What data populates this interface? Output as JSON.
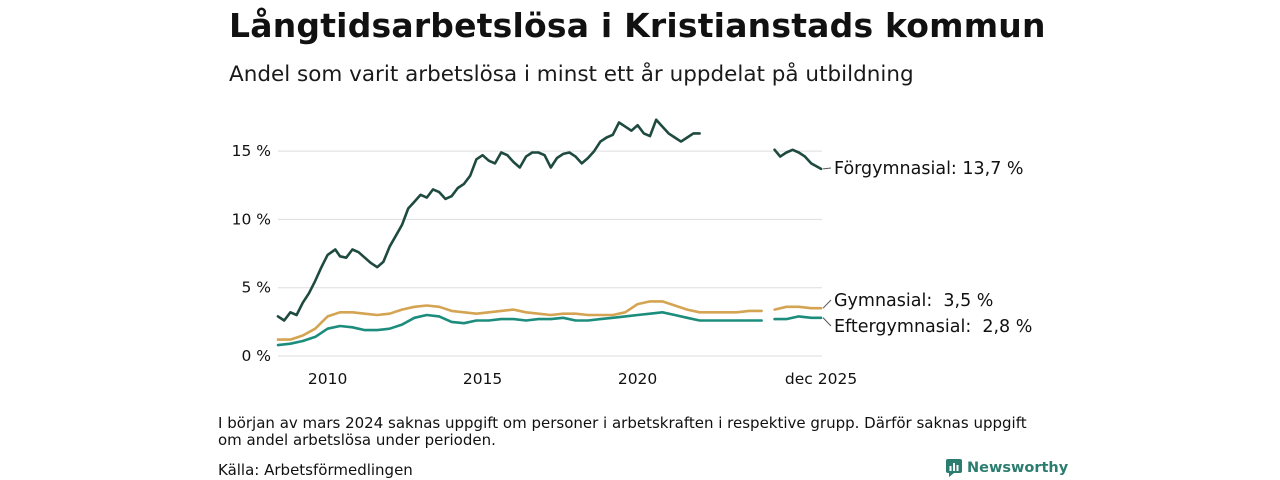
{
  "title": "Långtidsarbetslösa i Kristianstads kommun",
  "subtitle": "Andel som varit arbetslösa i minst ett år uppdelat på utbildning",
  "note": "I början av mars 2024 saknas uppgift om personer i arbetskraften i respektive grupp. Därför saknas uppgift om andel arbetslösa under perioden.",
  "source": "Källa: Arbetsförmedlingen",
  "brand": "Newsworthy",
  "colors": {
    "forgymnasial": "#1f4a3f",
    "gymnasial": "#d4a452",
    "eftergymnasial": "#1c8d7d",
    "grid": "#dddddd"
  },
  "chart_data": {
    "type": "line",
    "title": "Långtidsarbetslösa i Kristianstads kommun",
    "xlabel": "",
    "ylabel": "",
    "xlim": [
      2008.4,
      2025.95
    ],
    "ylim": [
      0,
      17.5
    ],
    "y_ticks": [
      {
        "value": 0,
        "label": "0 %"
      },
      {
        "value": 5,
        "label": "5 %"
      },
      {
        "value": 10,
        "label": "10 %"
      },
      {
        "value": 15,
        "label": "15 %"
      }
    ],
    "x_ticks": [
      {
        "value": 2010,
        "label": "2010"
      },
      {
        "value": 2015,
        "label": "2015"
      },
      {
        "value": 2020,
        "label": "2020"
      },
      {
        "value": 2025.92,
        "label": "dec 2025"
      }
    ],
    "gap": [
      2024.12,
      2024.42
    ],
    "series": [
      {
        "key": "forgymnasial",
        "name": "Förgymnasial",
        "end_label": "Förgymnasial: 13,7 %",
        "points": [
          [
            2008.4,
            2.9
          ],
          [
            2008.6,
            2.6
          ],
          [
            2008.8,
            3.2
          ],
          [
            2009.0,
            3.0
          ],
          [
            2009.2,
            3.9
          ],
          [
            2009.4,
            4.6
          ],
          [
            2009.6,
            5.5
          ],
          [
            2009.8,
            6.5
          ],
          [
            2010.0,
            7.4
          ],
          [
            2010.25,
            7.8
          ],
          [
            2010.4,
            7.3
          ],
          [
            2010.6,
            7.2
          ],
          [
            2010.8,
            7.8
          ],
          [
            2011.0,
            7.6
          ],
          [
            2011.2,
            7.2
          ],
          [
            2011.4,
            6.8
          ],
          [
            2011.6,
            6.5
          ],
          [
            2011.8,
            6.9
          ],
          [
            2012.0,
            8.0
          ],
          [
            2012.2,
            8.8
          ],
          [
            2012.4,
            9.6
          ],
          [
            2012.6,
            10.8
          ],
          [
            2012.8,
            11.3
          ],
          [
            2013.0,
            11.8
          ],
          [
            2013.2,
            11.6
          ],
          [
            2013.4,
            12.2
          ],
          [
            2013.6,
            12.0
          ],
          [
            2013.8,
            11.5
          ],
          [
            2014.0,
            11.7
          ],
          [
            2014.2,
            12.3
          ],
          [
            2014.4,
            12.6
          ],
          [
            2014.6,
            13.2
          ],
          [
            2014.8,
            14.4
          ],
          [
            2015.0,
            14.7
          ],
          [
            2015.2,
            14.3
          ],
          [
            2015.4,
            14.1
          ],
          [
            2015.6,
            14.9
          ],
          [
            2015.8,
            14.7
          ],
          [
            2016.0,
            14.2
          ],
          [
            2016.2,
            13.8
          ],
          [
            2016.4,
            14.6
          ],
          [
            2016.6,
            14.9
          ],
          [
            2016.8,
            14.9
          ],
          [
            2017.0,
            14.7
          ],
          [
            2017.2,
            13.8
          ],
          [
            2017.4,
            14.5
          ],
          [
            2017.6,
            14.8
          ],
          [
            2017.8,
            14.9
          ],
          [
            2018.0,
            14.6
          ],
          [
            2018.2,
            14.1
          ],
          [
            2018.4,
            14.5
          ],
          [
            2018.6,
            15.0
          ],
          [
            2018.8,
            15.7
          ],
          [
            2019.0,
            16.0
          ],
          [
            2019.2,
            16.2
          ],
          [
            2019.4,
            17.1
          ],
          [
            2019.6,
            16.8
          ],
          [
            2019.8,
            16.5
          ],
          [
            2020.0,
            16.9
          ],
          [
            2020.2,
            16.3
          ],
          [
            2020.4,
            16.1
          ],
          [
            2020.6,
            17.3
          ],
          [
            2020.8,
            16.8
          ],
          [
            2021.0,
            16.3
          ],
          [
            2021.2,
            16.0
          ],
          [
            2021.4,
            15.7
          ],
          [
            2021.6,
            16.0
          ],
          [
            2021.8,
            16.3
          ],
          [
            2022.0,
            16.3
          ],
          [
            2024.42,
            15.1
          ],
          [
            2024.6,
            14.6
          ],
          [
            2024.8,
            14.9
          ],
          [
            2025.0,
            15.1
          ],
          [
            2025.2,
            14.9
          ],
          [
            2025.4,
            14.6
          ],
          [
            2025.6,
            14.1
          ],
          [
            2025.92,
            13.7
          ]
        ]
      },
      {
        "key": "gymnasial",
        "name": "Gymnasial",
        "end_label": "Gymnasial:  3,5 %",
        "points": [
          [
            2008.4,
            1.2
          ],
          [
            2008.8,
            1.2
          ],
          [
            2009.2,
            1.5
          ],
          [
            2009.6,
            2.0
          ],
          [
            2010.0,
            2.9
          ],
          [
            2010.4,
            3.2
          ],
          [
            2010.8,
            3.2
          ],
          [
            2011.2,
            3.1
          ],
          [
            2011.6,
            3.0
          ],
          [
            2012.0,
            3.1
          ],
          [
            2012.4,
            3.4
          ],
          [
            2012.8,
            3.6
          ],
          [
            2013.2,
            3.7
          ],
          [
            2013.6,
            3.6
          ],
          [
            2014.0,
            3.3
          ],
          [
            2014.4,
            3.2
          ],
          [
            2014.8,
            3.1
          ],
          [
            2015.2,
            3.2
          ],
          [
            2015.6,
            3.3
          ],
          [
            2016.0,
            3.4
          ],
          [
            2016.4,
            3.2
          ],
          [
            2016.8,
            3.1
          ],
          [
            2017.2,
            3.0
          ],
          [
            2017.6,
            3.1
          ],
          [
            2018.0,
            3.1
          ],
          [
            2018.4,
            3.0
          ],
          [
            2018.8,
            3.0
          ],
          [
            2019.2,
            3.0
          ],
          [
            2019.6,
            3.2
          ],
          [
            2020.0,
            3.8
          ],
          [
            2020.4,
            4.0
          ],
          [
            2020.8,
            4.0
          ],
          [
            2021.2,
            3.7
          ],
          [
            2021.6,
            3.4
          ],
          [
            2022.0,
            3.2
          ],
          [
            2022.4,
            3.2
          ],
          [
            2022.8,
            3.2
          ],
          [
            2023.2,
            3.2
          ],
          [
            2023.6,
            3.3
          ],
          [
            2024.0,
            3.3
          ],
          [
            2024.42,
            3.4
          ],
          [
            2024.8,
            3.6
          ],
          [
            2025.2,
            3.6
          ],
          [
            2025.6,
            3.5
          ],
          [
            2025.92,
            3.5
          ]
        ]
      },
      {
        "key": "eftergymnasial",
        "name": "Eftergymnasial",
        "end_label": "Eftergymnasial:  2,8 %",
        "points": [
          [
            2008.4,
            0.8
          ],
          [
            2008.8,
            0.9
          ],
          [
            2009.2,
            1.1
          ],
          [
            2009.6,
            1.4
          ],
          [
            2010.0,
            2.0
          ],
          [
            2010.4,
            2.2
          ],
          [
            2010.8,
            2.1
          ],
          [
            2011.2,
            1.9
          ],
          [
            2011.6,
            1.9
          ],
          [
            2012.0,
            2.0
          ],
          [
            2012.4,
            2.3
          ],
          [
            2012.8,
            2.8
          ],
          [
            2013.2,
            3.0
          ],
          [
            2013.6,
            2.9
          ],
          [
            2014.0,
            2.5
          ],
          [
            2014.4,
            2.4
          ],
          [
            2014.8,
            2.6
          ],
          [
            2015.2,
            2.6
          ],
          [
            2015.6,
            2.7
          ],
          [
            2016.0,
            2.7
          ],
          [
            2016.4,
            2.6
          ],
          [
            2016.8,
            2.7
          ],
          [
            2017.2,
            2.7
          ],
          [
            2017.6,
            2.8
          ],
          [
            2018.0,
            2.6
          ],
          [
            2018.4,
            2.6
          ],
          [
            2018.8,
            2.7
          ],
          [
            2019.2,
            2.8
          ],
          [
            2019.6,
            2.9
          ],
          [
            2020.0,
            3.0
          ],
          [
            2020.4,
            3.1
          ],
          [
            2020.8,
            3.2
          ],
          [
            2021.2,
            3.0
          ],
          [
            2021.6,
            2.8
          ],
          [
            2022.0,
            2.6
          ],
          [
            2022.4,
            2.6
          ],
          [
            2022.8,
            2.6
          ],
          [
            2023.2,
            2.6
          ],
          [
            2023.6,
            2.6
          ],
          [
            2024.0,
            2.6
          ],
          [
            2024.42,
            2.7
          ],
          [
            2024.8,
            2.7
          ],
          [
            2025.2,
            2.9
          ],
          [
            2025.6,
            2.8
          ],
          [
            2025.92,
            2.8
          ]
        ]
      }
    ]
  }
}
